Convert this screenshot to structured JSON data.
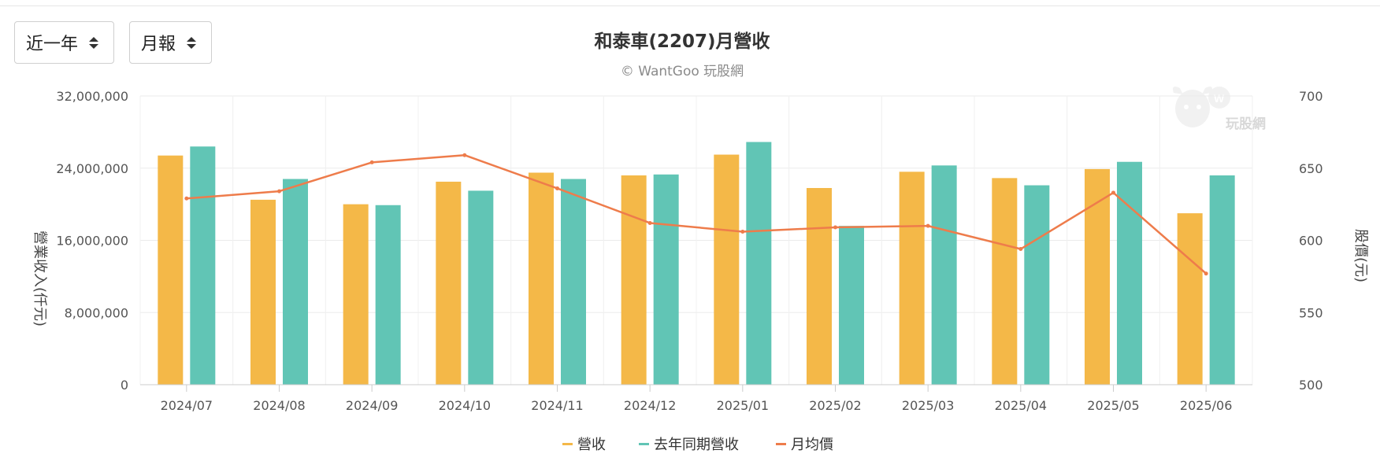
{
  "controls": {
    "range": {
      "value": "近一年"
    },
    "period": {
      "value": "月報"
    }
  },
  "watermark": {
    "text": "玩股網",
    "icon": "bull-logo-icon"
  },
  "colors": {
    "revenue": "#F4B848",
    "last_year": "#61C5B5",
    "price": "#EE7C4B"
  },
  "chart_data": {
    "type": "bar",
    "title": "和泰車(2207)月營收",
    "subtitle": "© WantGoo 玩股網",
    "categories": [
      "2024/07",
      "2024/08",
      "2024/09",
      "2024/10",
      "2024/11",
      "2024/12",
      "2025/01",
      "2025/02",
      "2025/03",
      "2025/04",
      "2025/05",
      "2025/06"
    ],
    "series": [
      {
        "name": "營收",
        "type": "bar",
        "axis": "left",
        "values": [
          25400000,
          20500000,
          20000000,
          22500000,
          23500000,
          23200000,
          25500000,
          21800000,
          23600000,
          22900000,
          23900000,
          19000000
        ]
      },
      {
        "name": "去年同期營收",
        "type": "bar",
        "axis": "left",
        "values": [
          26400000,
          22800000,
          19900000,
          21500000,
          22800000,
          23300000,
          26900000,
          17600000,
          24300000,
          22100000,
          24700000,
          23200000
        ]
      },
      {
        "name": "月均價",
        "type": "line",
        "axis": "right",
        "values": [
          629,
          634,
          654,
          659,
          636,
          612,
          606,
          609,
          610,
          594,
          633,
          577
        ]
      }
    ],
    "y_left": {
      "label": "營業收入(仟元)",
      "ylim": [
        0,
        32000000
      ],
      "ticks": [
        "0",
        "8,000,000",
        "16,000,000",
        "24,000,000",
        "32,000,000"
      ],
      "tick_values": [
        0,
        8000000,
        16000000,
        24000000,
        32000000
      ]
    },
    "y_right": {
      "label": "股價(元)",
      "ylim": [
        500,
        700
      ],
      "ticks": [
        "500",
        "550",
        "600",
        "650",
        "700"
      ],
      "tick_values": [
        500,
        550,
        600,
        650,
        700
      ]
    },
    "legend_position": "bottom-center",
    "grid": true
  }
}
